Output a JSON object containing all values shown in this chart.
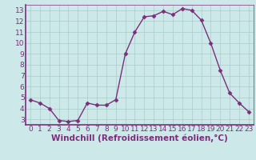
{
  "x": [
    0,
    1,
    2,
    3,
    4,
    5,
    6,
    7,
    8,
    9,
    10,
    11,
    12,
    13,
    14,
    15,
    16,
    17,
    18,
    19,
    20,
    21,
    22,
    23
  ],
  "y": [
    4.8,
    4.5,
    4.0,
    2.9,
    2.8,
    2.9,
    4.5,
    4.3,
    4.3,
    4.8,
    9.0,
    11.0,
    12.4,
    12.5,
    12.9,
    12.6,
    13.15,
    13.0,
    12.1,
    10.0,
    7.5,
    5.4,
    4.5,
    3.7
  ],
  "line_color": "#7b2f7b",
  "marker": "D",
  "marker_size": 2.5,
  "bg_color": "#cce8e8",
  "grid_color": "#aacccc",
  "xlabel": "Windchill (Refroidissement éolien,°C)",
  "xlabel_fontsize": 7.5,
  "tick_fontsize": 6.5,
  "tick_color": "#7b2f7b",
  "ylim": [
    2.5,
    13.5
  ],
  "xlim": [
    -0.5,
    23.5
  ],
  "yticks": [
    3,
    4,
    5,
    6,
    7,
    8,
    9,
    10,
    11,
    12,
    13
  ],
  "xticks": [
    0,
    1,
    2,
    3,
    4,
    5,
    6,
    7,
    8,
    9,
    10,
    11,
    12,
    13,
    14,
    15,
    16,
    17,
    18,
    19,
    20,
    21,
    22,
    23
  ],
  "border_color": "#7b2f7b",
  "linewidth": 1.0
}
